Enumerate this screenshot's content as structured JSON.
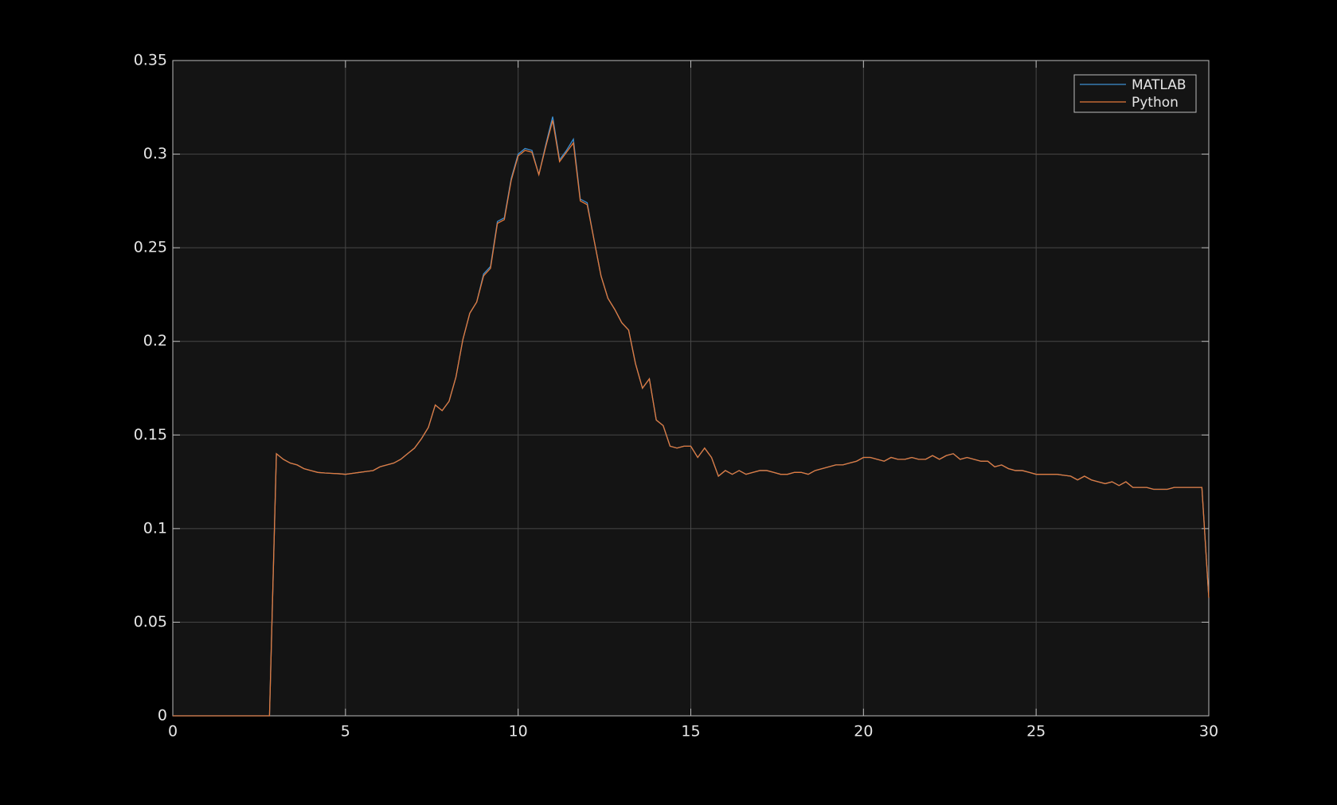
{
  "chart_data": {
    "type": "line",
    "x": [
      0,
      0.2,
      0.4,
      0.6,
      0.8,
      1,
      1.2,
      1.4,
      1.6,
      1.8,
      2,
      2.2,
      2.4,
      2.6,
      2.8,
      3,
      3.2,
      3.4,
      3.6,
      3.8,
      4,
      4.2,
      4.4,
      4.6,
      4.8,
      5,
      5.2,
      5.4,
      5.6,
      5.8,
      6,
      6.2,
      6.4,
      6.6,
      6.8,
      7,
      7.2,
      7.4,
      7.6,
      7.8,
      8,
      8.2,
      8.4,
      8.6,
      8.8,
      9,
      9.2,
      9.4,
      9.6,
      9.8,
      10,
      10.2,
      10.4,
      10.6,
      10.8,
      11,
      11.2,
      11.4,
      11.6,
      11.8,
      12,
      12.2,
      12.4,
      12.6,
      12.8,
      13,
      13.2,
      13.4,
      13.6,
      13.8,
      14,
      14.2,
      14.4,
      14.6,
      14.8,
      15,
      15.2,
      15.4,
      15.6,
      15.8,
      16,
      16.2,
      16.4,
      16.6,
      16.8,
      17,
      17.2,
      17.4,
      17.6,
      17.8,
      18,
      18.2,
      18.4,
      18.6,
      18.8,
      19,
      19.2,
      19.4,
      19.6,
      19.8,
      20,
      20.2,
      20.4,
      20.6,
      20.8,
      21,
      21.2,
      21.4,
      21.6,
      21.8,
      22,
      22.2,
      22.4,
      22.6,
      22.8,
      23,
      23.2,
      23.4,
      23.6,
      23.8,
      24,
      24.2,
      24.4,
      24.6,
      24.8,
      25,
      25.2,
      25.4,
      25.6,
      25.8,
      26,
      26.2,
      26.4,
      26.6,
      26.8,
      27,
      27.2,
      27.4,
      27.6,
      27.8,
      28,
      28.2,
      28.4,
      28.6,
      28.8,
      29,
      29.2,
      29.4,
      29.6,
      29.8,
      30
    ],
    "series": [
      {
        "name": "MATLAB",
        "color": "#3d8fd1",
        "values": [
          0,
          0,
          0,
          0,
          0,
          0,
          0,
          0,
          0,
          0,
          0,
          0,
          0,
          0,
          0,
          0.14,
          0.137,
          0.135,
          0.134,
          0.132,
          0.131,
          0.13,
          0.1297,
          0.1295,
          0.1293,
          0.129,
          0.1295,
          0.13,
          0.1305,
          0.131,
          0.133,
          0.134,
          0.135,
          0.137,
          0.14,
          0.143,
          0.148,
          0.154,
          0.166,
          0.163,
          0.168,
          0.181,
          0.201,
          0.215,
          0.221,
          0.236,
          0.24,
          0.264,
          0.266,
          0.287,
          0.3,
          0.303,
          0.302,
          0.289,
          0.305,
          0.32,
          0.297,
          0.302,
          0.308,
          0.276,
          0.274,
          0.254,
          0.235,
          0.223,
          0.217,
          0.21,
          0.206,
          0.188,
          0.175,
          0.18,
          0.158,
          0.155,
          0.144,
          0.143,
          0.144,
          0.144,
          0.138,
          0.143,
          0.138,
          0.128,
          0.131,
          0.129,
          0.131,
          0.129,
          0.13,
          0.131,
          0.131,
          0.13,
          0.129,
          0.129,
          0.13,
          0.13,
          0.129,
          0.131,
          0.132,
          0.133,
          0.134,
          0.134,
          0.135,
          0.136,
          0.138,
          0.138,
          0.137,
          0.136,
          0.138,
          0.137,
          0.137,
          0.138,
          0.137,
          0.137,
          0.139,
          0.137,
          0.139,
          0.14,
          0.137,
          0.138,
          0.137,
          0.136,
          0.136,
          0.133,
          0.134,
          0.132,
          0.131,
          0.131,
          0.13,
          0.129,
          0.129,
          0.129,
          0.129,
          0.1285,
          0.128,
          0.126,
          0.128,
          0.126,
          0.125,
          0.124,
          0.125,
          0.123,
          0.125,
          0.122,
          0.122,
          0.122,
          0.121,
          0.121,
          0.121,
          0.122,
          0.122,
          0.122,
          0.122,
          0.122,
          0.063
        ]
      },
      {
        "name": "Python",
        "color": "#e2793b",
        "values": [
          0,
          0,
          0,
          0,
          0,
          0,
          0,
          0,
          0,
          0,
          0,
          0,
          0,
          0,
          0,
          0.14,
          0.137,
          0.135,
          0.134,
          0.132,
          0.131,
          0.13,
          0.1297,
          0.1295,
          0.1293,
          0.129,
          0.1295,
          0.13,
          0.1305,
          0.131,
          0.133,
          0.134,
          0.135,
          0.137,
          0.14,
          0.143,
          0.148,
          0.154,
          0.166,
          0.163,
          0.168,
          0.181,
          0.201,
          0.215,
          0.221,
          0.235,
          0.239,
          0.263,
          0.265,
          0.286,
          0.299,
          0.302,
          0.301,
          0.289,
          0.304,
          0.318,
          0.296,
          0.301,
          0.306,
          0.275,
          0.273,
          0.254,
          0.235,
          0.223,
          0.217,
          0.21,
          0.206,
          0.188,
          0.175,
          0.18,
          0.158,
          0.155,
          0.144,
          0.143,
          0.144,
          0.144,
          0.138,
          0.143,
          0.138,
          0.128,
          0.131,
          0.129,
          0.131,
          0.129,
          0.13,
          0.131,
          0.131,
          0.13,
          0.129,
          0.129,
          0.13,
          0.13,
          0.129,
          0.131,
          0.132,
          0.133,
          0.134,
          0.134,
          0.135,
          0.136,
          0.138,
          0.138,
          0.137,
          0.136,
          0.138,
          0.137,
          0.137,
          0.138,
          0.137,
          0.137,
          0.139,
          0.137,
          0.139,
          0.14,
          0.137,
          0.138,
          0.137,
          0.136,
          0.136,
          0.133,
          0.134,
          0.132,
          0.131,
          0.131,
          0.13,
          0.129,
          0.129,
          0.129,
          0.129,
          0.1285,
          0.128,
          0.126,
          0.128,
          0.126,
          0.125,
          0.124,
          0.125,
          0.123,
          0.125,
          0.122,
          0.122,
          0.122,
          0.121,
          0.121,
          0.121,
          0.122,
          0.122,
          0.122,
          0.122,
          0.122,
          0.063
        ]
      }
    ],
    "xlim": [
      0,
      30
    ],
    "xticks": [
      0,
      5,
      10,
      15,
      20,
      25,
      30
    ],
    "ylim": [
      0,
      0.35
    ],
    "yticks": [
      0,
      0.05,
      0.1,
      0.15,
      0.2,
      0.25,
      0.3,
      0.35
    ],
    "grid": true,
    "legend": "upper-right"
  }
}
